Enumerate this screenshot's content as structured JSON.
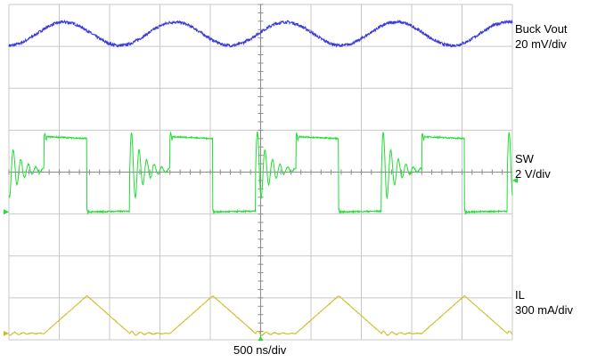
{
  "chart_data": {
    "type": "line",
    "grid": true,
    "divisions": {
      "x": 10,
      "y": 8
    },
    "timebase": "500 ns/div",
    "series": [
      {
        "name": "Buck Vout",
        "scale": "20 mV/div",
        "color": "#3a3ad8",
        "waveform": "sine ripple",
        "period_div": 2.2,
        "amplitude_div": 0.28,
        "offset_div": 3.3
      },
      {
        "name": "SW",
        "scale": "2 V/div",
        "color": "#22dd33",
        "waveform": "switch node with ringing",
        "period_div": 2.5,
        "high_div": 0.85,
        "low_div": -0.95
      },
      {
        "name": "IL",
        "scale": "300 mA/div",
        "color": "#c8c020",
        "waveform": "triangle (discontinuous conduction)",
        "period_div": 2.5,
        "peak_div": -2.95,
        "floor_div": -3.85
      }
    ]
  },
  "labels": {
    "buck_name": "Buck Vout",
    "buck_scale": "20 mV/div",
    "sw_name": "SW",
    "sw_scale": "2 V/div",
    "il_name": "IL",
    "il_scale": "300 mA/div",
    "timebase": "500 ns/div"
  }
}
